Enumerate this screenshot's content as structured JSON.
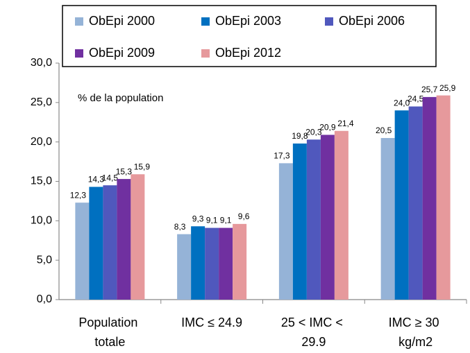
{
  "chart_data": {
    "type": "bar",
    "categories": [
      "Population totale",
      "IMC ≤ 24.9",
      "25 < IMC < 29.9",
      "IMC ≥ 30 kg/m2"
    ],
    "series": [
      {
        "name": "ObEpi 2000",
        "color": "#95b3d7",
        "values": [
          12.3,
          8.3,
          17.3,
          20.5
        ],
        "value_labels": [
          "12,3",
          "8,3",
          "17,3",
          "20,5"
        ]
      },
      {
        "name": "ObEpi 2003",
        "color": "#0070c0",
        "values": [
          14.3,
          9.3,
          19.8,
          24.0
        ],
        "value_labels": [
          "14,3",
          "9,3",
          "19,8",
          "24,0"
        ]
      },
      {
        "name": "ObEpi 2006",
        "color": "#5058bd",
        "values": [
          14.5,
          9.1,
          20.3,
          24.5
        ],
        "value_labels": [
          "14,5",
          "9,1",
          "20,3",
          "24,5"
        ]
      },
      {
        "name": "ObEpi 2009",
        "color": "#7030a0",
        "values": [
          15.3,
          9.1,
          20.9,
          25.7
        ],
        "value_labels": [
          "15,3",
          "9,1",
          "20,9",
          "25,7"
        ]
      },
      {
        "name": "ObEpi 2012",
        "color": "#e6999c",
        "values": [
          15.9,
          9.6,
          21.4,
          25.9
        ],
        "value_labels": [
          "15,9",
          "9,6",
          "21,4",
          "25,9"
        ]
      }
    ],
    "annotation": "% de la population",
    "ylim": [
      0,
      30
    ],
    "yticks": [
      {
        "value": 0,
        "label": "0,0"
      },
      {
        "value": 5,
        "label": "5,0"
      },
      {
        "value": 10,
        "label": "10,0"
      },
      {
        "value": 15,
        "label": "15,0"
      },
      {
        "value": 20,
        "label": "20,0"
      },
      {
        "value": 25,
        "label": "25,0"
      },
      {
        "value": 30,
        "label": "30,0"
      }
    ],
    "grid": false,
    "legend": "top"
  }
}
